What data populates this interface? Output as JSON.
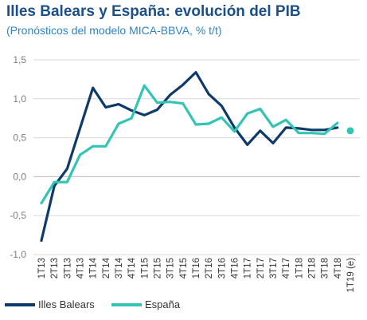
{
  "chart_data": {
    "type": "line",
    "title": "Illes Balears y España: evolución del PIB",
    "subtitle": "(Pronósticos del modelo MICA-BBVA, % t/t)",
    "xlabel": "",
    "ylabel": "",
    "ylim": [
      -1.0,
      1.5
    ],
    "y_ticks": [
      "1,5",
      "1,0",
      "0,5",
      "0,0",
      "-0,5",
      "-1,0"
    ],
    "y_tick_values": [
      1.5,
      1.0,
      0.5,
      0.0,
      -0.5,
      -1.0
    ],
    "grid": true,
    "legend_position": "bottom",
    "categories": [
      "1T13",
      "2T13",
      "3T13",
      "4T13",
      "1T14",
      "2T14",
      "3T14",
      "4T14",
      "1T15",
      "2T15",
      "3T15",
      "4T15",
      "1T16",
      "2T16",
      "3T16",
      "4T16",
      "1T17",
      "2T17",
      "3T17",
      "4T17",
      "1T18",
      "2T18",
      "3T18",
      "4T18",
      "1T19 (e)"
    ],
    "series": [
      {
        "name": "Illes Balears",
        "color": "#0e3a6b",
        "values": [
          -0.82,
          -0.12,
          0.1,
          0.62,
          1.14,
          0.89,
          0.93,
          0.85,
          0.79,
          0.86,
          1.05,
          1.18,
          1.34,
          1.06,
          0.91,
          0.63,
          0.41,
          0.59,
          0.43,
          0.63,
          0.62,
          0.6,
          0.6,
          0.63,
          null
        ]
      },
      {
        "name": "España",
        "color": "#33c4b6",
        "values": [
          -0.34,
          -0.07,
          -0.07,
          0.28,
          0.39,
          0.39,
          0.68,
          0.75,
          1.17,
          0.95,
          0.96,
          0.94,
          0.67,
          0.68,
          0.76,
          0.58,
          0.81,
          0.87,
          0.64,
          0.73,
          0.56,
          0.56,
          0.55,
          0.69,
          null
        ]
      }
    ],
    "forecast_point": {
      "series": "España",
      "category": "1T19 (e)",
      "value": 0.59,
      "color": "#33c4b6"
    }
  }
}
